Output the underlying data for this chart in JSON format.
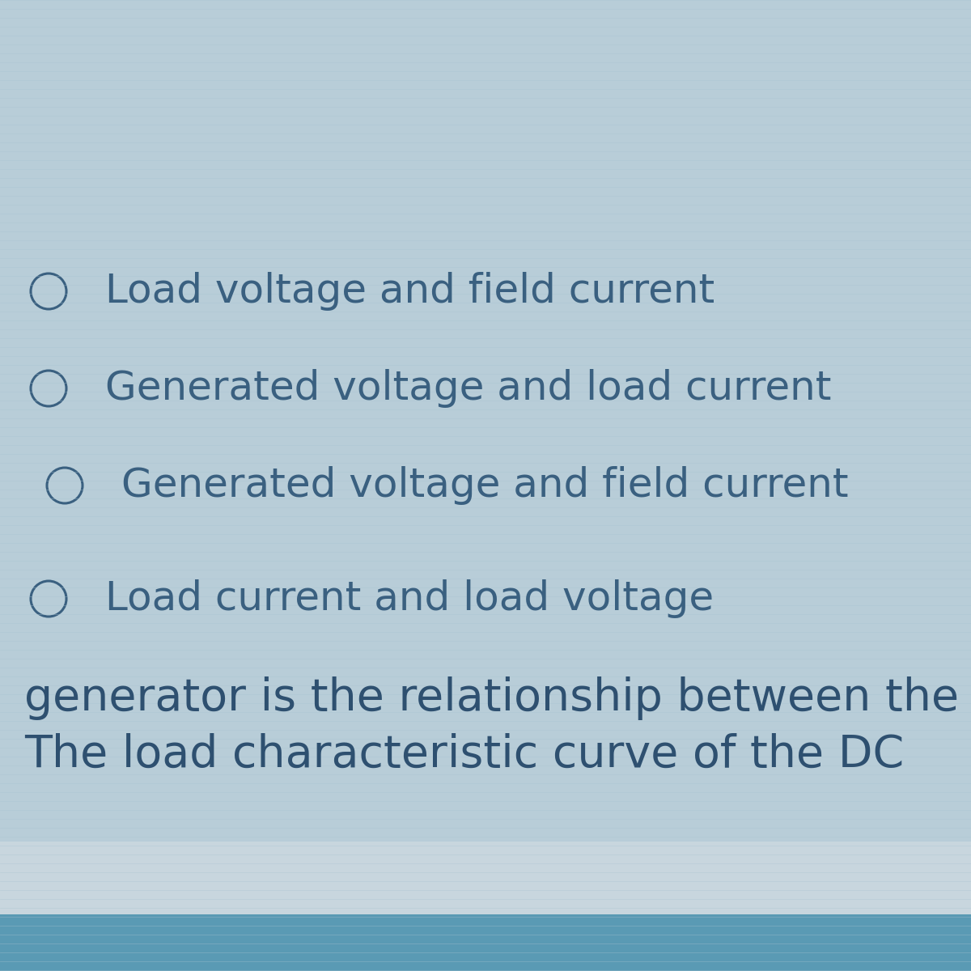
{
  "bg_color": "#b8cdd8",
  "top_bar_color": "#5b9ab5",
  "header_band_color": "#d8e5ec",
  "title_line1": "The load characteristic curve of the DC",
  "title_line2": "generator is the relationship between the",
  "options": [
    "Load current and load voltage",
    "Generated voltage and field current",
    "Generated voltage and load current",
    "Load voltage and field current"
  ],
  "text_color": "#2e5070",
  "option_text_color": "#3a6080",
  "title_fontsize": 40,
  "option_fontsize": 36,
  "fig_width": 12,
  "fig_height": 12
}
